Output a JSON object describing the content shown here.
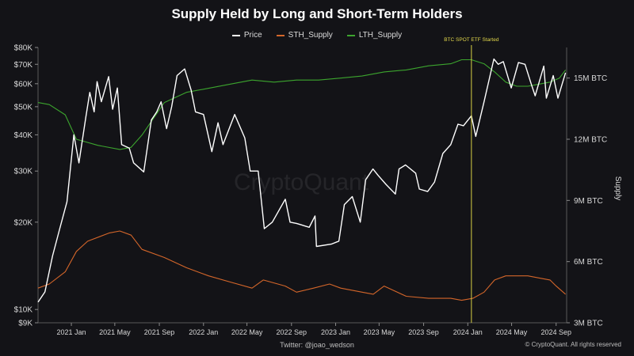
{
  "chart_data": {
    "type": "line",
    "title": "Supply Held by Long and Short-Term Holders",
    "annotation": "BTC SPOT ETF Started",
    "left_axis": {
      "scale": "log",
      "ylim": [
        9000,
        80000
      ],
      "tick_values": [
        9000,
        10000,
        20000,
        30000,
        40000,
        50000,
        60000,
        70000,
        80000
      ],
      "tick_labels": [
        "$9K",
        "$10K",
        "$20K",
        "$30K",
        "$40K",
        "$50K",
        "$60K",
        "$70K",
        "$80K"
      ]
    },
    "right_axis": {
      "label": "Supply",
      "ylim": [
        3000000,
        16500000
      ],
      "tick_values": [
        3000000,
        6000000,
        9000000,
        12000000,
        15000000
      ],
      "tick_labels": [
        "3M BTC",
        "6M BTC",
        "9M BTC",
        "12M BTC",
        "15M BTC"
      ]
    },
    "x_axis": {
      "range": [
        "2020-10-01",
        "2024-09-30"
      ],
      "tick_dates": [
        "2021-01-01",
        "2021-05-01",
        "2021-09-01",
        "2022-01-01",
        "2022-05-01",
        "2022-09-01",
        "2023-01-01",
        "2023-05-01",
        "2023-09-01",
        "2024-01-01",
        "2024-05-01",
        "2024-09-01"
      ],
      "tick_labels": [
        "2021 Jan",
        "2021 May",
        "2021 Sep",
        "2022 Jan",
        "2022 May",
        "2022 Sep",
        "2023 Jan",
        "2023 May",
        "2023 Sep",
        "2024 Jan",
        "2024 May",
        "2024 Sep"
      ]
    },
    "event_date": "2024-01-11",
    "series": [
      {
        "name": "Price",
        "color": "#ffffff",
        "axis": "left",
        "points": [
          [
            "2020-10-01",
            10600
          ],
          [
            "2020-10-20",
            11500
          ],
          [
            "2020-11-10",
            15300
          ],
          [
            "2020-11-30",
            19000
          ],
          [
            "2020-12-20",
            23500
          ],
          [
            "2021-01-08",
            40000
          ],
          [
            "2021-01-22",
            32000
          ],
          [
            "2021-02-10",
            46000
          ],
          [
            "2021-02-21",
            56000
          ],
          [
            "2021-03-05",
            48000
          ],
          [
            "2021-03-13",
            61000
          ],
          [
            "2021-03-25",
            52000
          ],
          [
            "2021-04-14",
            63500
          ],
          [
            "2021-04-25",
            49000
          ],
          [
            "2021-05-08",
            58000
          ],
          [
            "2021-05-20",
            37000
          ],
          [
            "2021-06-10",
            36000
          ],
          [
            "2021-06-22",
            32000
          ],
          [
            "2021-07-20",
            29800
          ],
          [
            "2021-08-10",
            45000
          ],
          [
            "2021-08-25",
            48000
          ],
          [
            "2021-09-06",
            52000
          ],
          [
            "2021-09-21",
            42000
          ],
          [
            "2021-10-05",
            50000
          ],
          [
            "2021-10-20",
            64000
          ],
          [
            "2021-11-10",
            67500
          ],
          [
            "2021-11-28",
            57000
          ],
          [
            "2021-12-10",
            48000
          ],
          [
            "2022-01-01",
            47000
          ],
          [
            "2022-01-24",
            35000
          ],
          [
            "2022-02-10",
            44000
          ],
          [
            "2022-02-24",
            37000
          ],
          [
            "2022-03-28",
            47000
          ],
          [
            "2022-04-25",
            39000
          ],
          [
            "2022-05-10",
            30000
          ],
          [
            "2022-06-01",
            30000
          ],
          [
            "2022-06-18",
            19000
          ],
          [
            "2022-07-10",
            20000
          ],
          [
            "2022-08-15",
            24000
          ],
          [
            "2022-08-28",
            20000
          ],
          [
            "2022-09-15",
            19800
          ],
          [
            "2022-10-20",
            19200
          ],
          [
            "2022-11-05",
            21000
          ],
          [
            "2022-11-09",
            16500
          ],
          [
            "2022-12-20",
            16800
          ],
          [
            "2023-01-10",
            17200
          ],
          [
            "2023-01-25",
            23000
          ],
          [
            "2023-02-16",
            24500
          ],
          [
            "2023-03-10",
            20000
          ],
          [
            "2023-03-25",
            28000
          ],
          [
            "2023-04-14",
            30500
          ],
          [
            "2023-04-28",
            29000
          ],
          [
            "2023-05-20",
            27000
          ],
          [
            "2023-06-15",
            25000
          ],
          [
            "2023-06-25",
            30500
          ],
          [
            "2023-07-13",
            31500
          ],
          [
            "2023-08-10",
            29500
          ],
          [
            "2023-08-20",
            26000
          ],
          [
            "2023-09-12",
            25500
          ],
          [
            "2023-10-01",
            27500
          ],
          [
            "2023-10-24",
            34500
          ],
          [
            "2023-11-15",
            37000
          ],
          [
            "2023-12-05",
            43500
          ],
          [
            "2023-12-20",
            43000
          ],
          [
            "2024-01-11",
            46500
          ],
          [
            "2024-01-23",
            39500
          ],
          [
            "2024-02-15",
            52000
          ],
          [
            "2024-03-05",
            66000
          ],
          [
            "2024-03-13",
            73000
          ],
          [
            "2024-03-25",
            70000
          ],
          [
            "2024-04-08",
            71500
          ],
          [
            "2024-04-30",
            58000
          ],
          [
            "2024-05-20",
            71000
          ],
          [
            "2024-06-07",
            70000
          ],
          [
            "2024-06-24",
            60000
          ],
          [
            "2024-07-05",
            54500
          ],
          [
            "2024-07-29",
            69000
          ],
          [
            "2024-08-05",
            53500
          ],
          [
            "2024-08-24",
            64000
          ],
          [
            "2024-09-06",
            53500
          ],
          [
            "2024-09-27",
            65500
          ]
        ]
      },
      {
        "name": "STH_Supply",
        "color": "#d4662a",
        "axis": "right",
        "points": [
          [
            "2020-10-01",
            4700000
          ],
          [
            "2020-11-01",
            4900000
          ],
          [
            "2020-12-15",
            5500000
          ],
          [
            "2021-01-15",
            6500000
          ],
          [
            "2021-02-15",
            7000000
          ],
          [
            "2021-04-15",
            7400000
          ],
          [
            "2021-05-15",
            7500000
          ],
          [
            "2021-06-15",
            7300000
          ],
          [
            "2021-07-15",
            6600000
          ],
          [
            "2021-09-15",
            6200000
          ],
          [
            "2021-11-15",
            5700000
          ],
          [
            "2022-01-15",
            5300000
          ],
          [
            "2022-03-15",
            5000000
          ],
          [
            "2022-05-15",
            4700000
          ],
          [
            "2022-06-15",
            5100000
          ],
          [
            "2022-08-15",
            4800000
          ],
          [
            "2022-09-15",
            4500000
          ],
          [
            "2022-11-01",
            4700000
          ],
          [
            "2022-12-15",
            4900000
          ],
          [
            "2023-01-15",
            4700000
          ],
          [
            "2023-03-15",
            4500000
          ],
          [
            "2023-04-15",
            4400000
          ],
          [
            "2023-05-15",
            4800000
          ],
          [
            "2023-07-15",
            4300000
          ],
          [
            "2023-09-15",
            4200000
          ],
          [
            "2023-11-15",
            4200000
          ],
          [
            "2023-12-15",
            4100000
          ],
          [
            "2024-01-15",
            4200000
          ],
          [
            "2024-02-15",
            4500000
          ],
          [
            "2024-03-15",
            5100000
          ],
          [
            "2024-04-15",
            5300000
          ],
          [
            "2024-05-15",
            5300000
          ],
          [
            "2024-06-15",
            5300000
          ],
          [
            "2024-07-15",
            5200000
          ],
          [
            "2024-08-15",
            5100000
          ],
          [
            "2024-09-01",
            4800000
          ],
          [
            "2024-09-27",
            4400000
          ]
        ]
      },
      {
        "name": "LTH_Supply",
        "color": "#3ca52e",
        "axis": "right",
        "points": [
          [
            "2020-10-01",
            13800000
          ],
          [
            "2020-11-01",
            13700000
          ],
          [
            "2020-12-15",
            13200000
          ],
          [
            "2021-01-15",
            12000000
          ],
          [
            "2021-03-15",
            11700000
          ],
          [
            "2021-05-15",
            11500000
          ],
          [
            "2021-06-15",
            11600000
          ],
          [
            "2021-07-15",
            12200000
          ],
          [
            "2021-09-15",
            13800000
          ],
          [
            "2021-11-15",
            14300000
          ],
          [
            "2022-01-15",
            14500000
          ],
          [
            "2022-03-15",
            14700000
          ],
          [
            "2022-05-15",
            14900000
          ],
          [
            "2022-07-15",
            14800000
          ],
          [
            "2022-09-15",
            14900000
          ],
          [
            "2022-11-15",
            14900000
          ],
          [
            "2023-01-15",
            15000000
          ],
          [
            "2023-03-15",
            15100000
          ],
          [
            "2023-05-15",
            15300000
          ],
          [
            "2023-07-15",
            15400000
          ],
          [
            "2023-09-15",
            15600000
          ],
          [
            "2023-11-15",
            15700000
          ],
          [
            "2023-12-15",
            15900000
          ],
          [
            "2024-01-11",
            15900000
          ],
          [
            "2024-02-15",
            15700000
          ],
          [
            "2024-03-15",
            15300000
          ],
          [
            "2024-04-15",
            14800000
          ],
          [
            "2024-05-15",
            14600000
          ],
          [
            "2024-06-15",
            14600000
          ],
          [
            "2024-07-15",
            14700000
          ],
          [
            "2024-08-15",
            14800000
          ],
          [
            "2024-09-10",
            15000000
          ],
          [
            "2024-09-27",
            15400000
          ]
        ]
      }
    ],
    "watermark": "CryptoQuant",
    "credit": "Twitter: @joao_wedson",
    "copyright": "© CryptoQuant. All rights reserved",
    "background": "#131317",
    "grid": false,
    "legend_position": "top-center"
  }
}
